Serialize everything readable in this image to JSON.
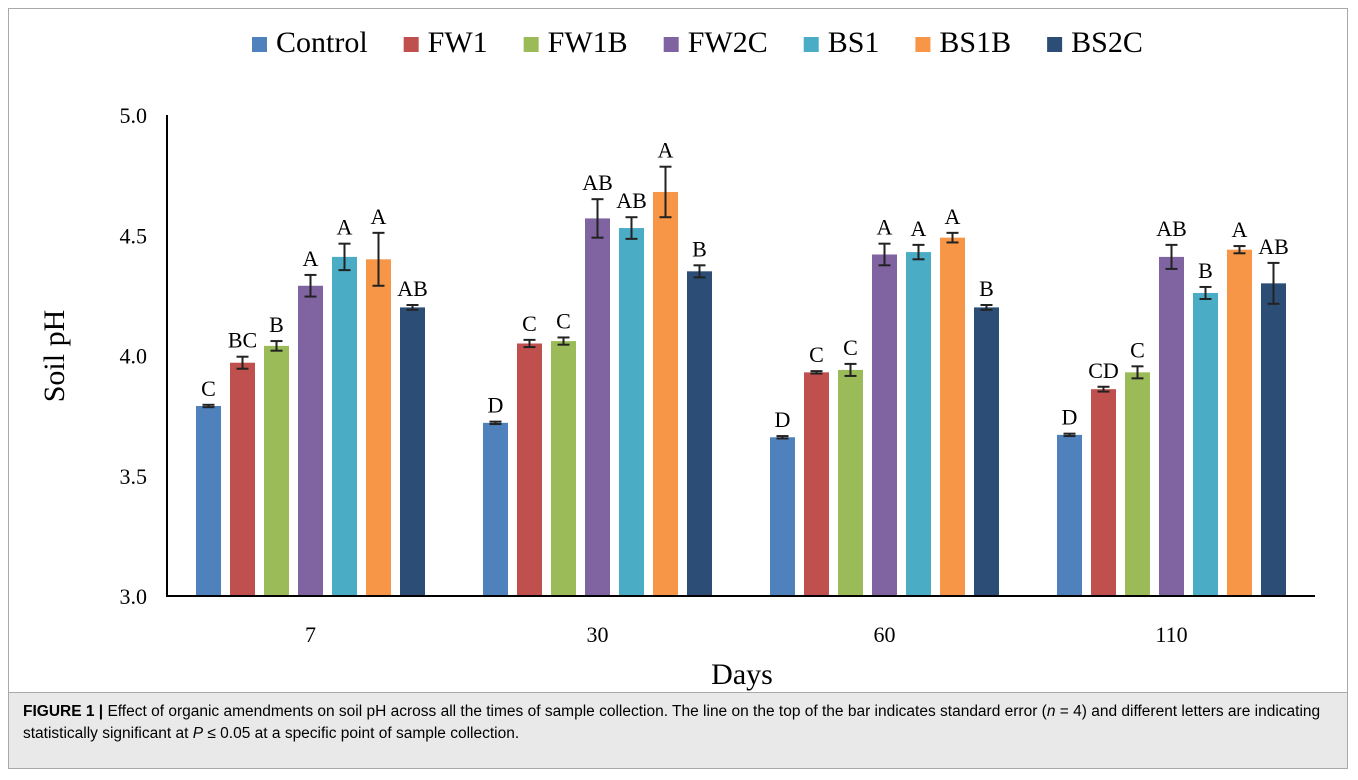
{
  "chart_data": {
    "type": "bar",
    "xlabel": "Days",
    "ylabel": "Soil pH",
    "ylim": [
      3.0,
      5.0
    ],
    "yticks": [
      "3.0",
      "3.5",
      "4.0",
      "4.5",
      "5.0"
    ],
    "grid": false,
    "legend_position": "top",
    "categories": [
      "7",
      "30",
      "60",
      "110"
    ],
    "series": [
      {
        "name": "Control",
        "color": "#4f81bd",
        "values": [
          3.79,
          3.72,
          3.66,
          3.67
        ],
        "errors": [
          0.005,
          0.005,
          0.005,
          0.005
        ],
        "letters": [
          "C",
          "D",
          "D",
          "D"
        ]
      },
      {
        "name": "FW1",
        "color": "#c0504d",
        "values": [
          3.97,
          4.05,
          3.93,
          3.86
        ],
        "errors": [
          0.025,
          0.015,
          0.005,
          0.01
        ],
        "letters": [
          "BC",
          "C",
          "C",
          "CD"
        ]
      },
      {
        "name": "FW1B",
        "color": "#9bbb59",
        "values": [
          4.04,
          4.06,
          3.94,
          3.93
        ],
        "errors": [
          0.02,
          0.015,
          0.025,
          0.025
        ],
        "letters": [
          "B",
          "C",
          "C",
          "C"
        ]
      },
      {
        "name": "FW2C",
        "color": "#8064a2",
        "values": [
          4.29,
          4.57,
          4.42,
          4.41
        ],
        "errors": [
          0.045,
          0.08,
          0.045,
          0.05
        ],
        "letters": [
          "A",
          "AB",
          "A",
          "AB"
        ]
      },
      {
        "name": "BS1",
        "color": "#4bacc6",
        "values": [
          4.41,
          4.53,
          4.43,
          4.26
        ],
        "errors": [
          0.055,
          0.045,
          0.03,
          0.025
        ],
        "letters": [
          "A",
          "AB",
          "A",
          "B"
        ]
      },
      {
        "name": "BS1B",
        "color": "#f79646",
        "values": [
          4.4,
          4.68,
          4.49,
          4.44
        ],
        "errors": [
          0.11,
          0.105,
          0.02,
          0.015
        ],
        "letters": [
          "A",
          "A",
          "A",
          "A"
        ]
      },
      {
        "name": "BS2C",
        "color": "#2c4d75",
        "values": [
          4.2,
          4.35,
          4.2,
          4.3
        ],
        "errors": [
          0.01,
          0.025,
          0.01,
          0.085
        ],
        "letters": [
          "AB",
          "B",
          "B",
          "AB"
        ]
      }
    ]
  },
  "caption": {
    "label": "FIGURE 1 |",
    "part1": " Effect of organic amendments on soil pH across all the times of sample collection. The line on the top of the bar indicates standard error (",
    "n_symbol": "n",
    "part2": " = 4) and different letters are indicating statistically significant at ",
    "p_symbol": "P",
    "part3": " ≤ 0.05 at a specific point of sample collection."
  }
}
